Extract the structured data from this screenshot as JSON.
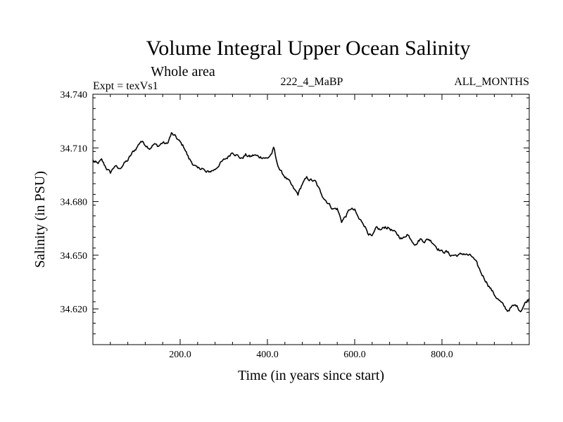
{
  "chart_data": {
    "type": "line",
    "title": "Volume Integral Upper Ocean Salinity",
    "subtitle": "Whole area",
    "annotations": {
      "left": "Expt = texVs1",
      "center": "222_4_MaBP",
      "right": "ALL_MONTHS"
    },
    "xlabel": "Time (in years since start)",
    "ylabel": "Salinity (in PSU)",
    "xlim": [
      0,
      1000
    ],
    "ylim": [
      34.6,
      34.74
    ],
    "xticks": [
      200,
      400,
      600,
      800
    ],
    "xtick_labels": [
      "200.0",
      "400.0",
      "600.0",
      "800.0"
    ],
    "yticks": [
      34.62,
      34.65,
      34.68,
      34.71,
      34.74
    ],
    "ytick_labels": [
      "34.620",
      "34.650",
      "34.680",
      "34.710",
      "34.740"
    ],
    "grid": false,
    "series": [
      {
        "name": "Salinity",
        "color": "#000000",
        "x": [
          0,
          10,
          20,
          30,
          40,
          50,
          60,
          70,
          80,
          90,
          100,
          110,
          120,
          130,
          140,
          150,
          160,
          170,
          180,
          190,
          200,
          210,
          220,
          230,
          240,
          250,
          260,
          270,
          280,
          290,
          300,
          310,
          320,
          330,
          340,
          350,
          360,
          370,
          380,
          390,
          400,
          410,
          415,
          420,
          430,
          440,
          450,
          460,
          470,
          480,
          490,
          500,
          510,
          520,
          530,
          540,
          550,
          560,
          570,
          580,
          590,
          600,
          610,
          620,
          630,
          640,
          650,
          660,
          670,
          680,
          690,
          700,
          710,
          720,
          730,
          740,
          750,
          760,
          770,
          780,
          790,
          800,
          810,
          820,
          830,
          840,
          850,
          860,
          870,
          880,
          890,
          900,
          910,
          920,
          930,
          940,
          950,
          960,
          970,
          980,
          990,
          1000
        ],
        "y": [
          34.703,
          34.701,
          34.703,
          34.699,
          34.696,
          34.7,
          34.698,
          34.701,
          34.703,
          34.707,
          34.71,
          34.714,
          34.712,
          34.71,
          34.712,
          34.711,
          34.713,
          34.712,
          34.718,
          34.716,
          34.713,
          34.71,
          34.704,
          34.701,
          34.698,
          34.699,
          34.696,
          34.697,
          34.698,
          34.701,
          34.703,
          34.705,
          34.708,
          34.706,
          34.704,
          34.706,
          34.705,
          34.706,
          34.705,
          34.705,
          34.704,
          34.707,
          34.71,
          34.703,
          34.697,
          34.694,
          34.691,
          34.687,
          34.684,
          34.69,
          34.693,
          34.692,
          34.691,
          34.686,
          34.682,
          34.679,
          34.676,
          34.676,
          34.669,
          34.672,
          34.676,
          34.675,
          34.67,
          34.668,
          34.663,
          34.66,
          34.665,
          34.664,
          34.666,
          34.665,
          34.663,
          34.661,
          34.659,
          34.662,
          34.659,
          34.656,
          34.659,
          34.658,
          34.659,
          34.657,
          34.654,
          34.652,
          34.652,
          34.65,
          34.65,
          34.65,
          34.651,
          34.65,
          34.649,
          34.645,
          34.64,
          34.636,
          34.632,
          34.628,
          34.625,
          34.622,
          34.619,
          34.621,
          34.622,
          34.619,
          34.623,
          34.626
        ]
      }
    ]
  }
}
